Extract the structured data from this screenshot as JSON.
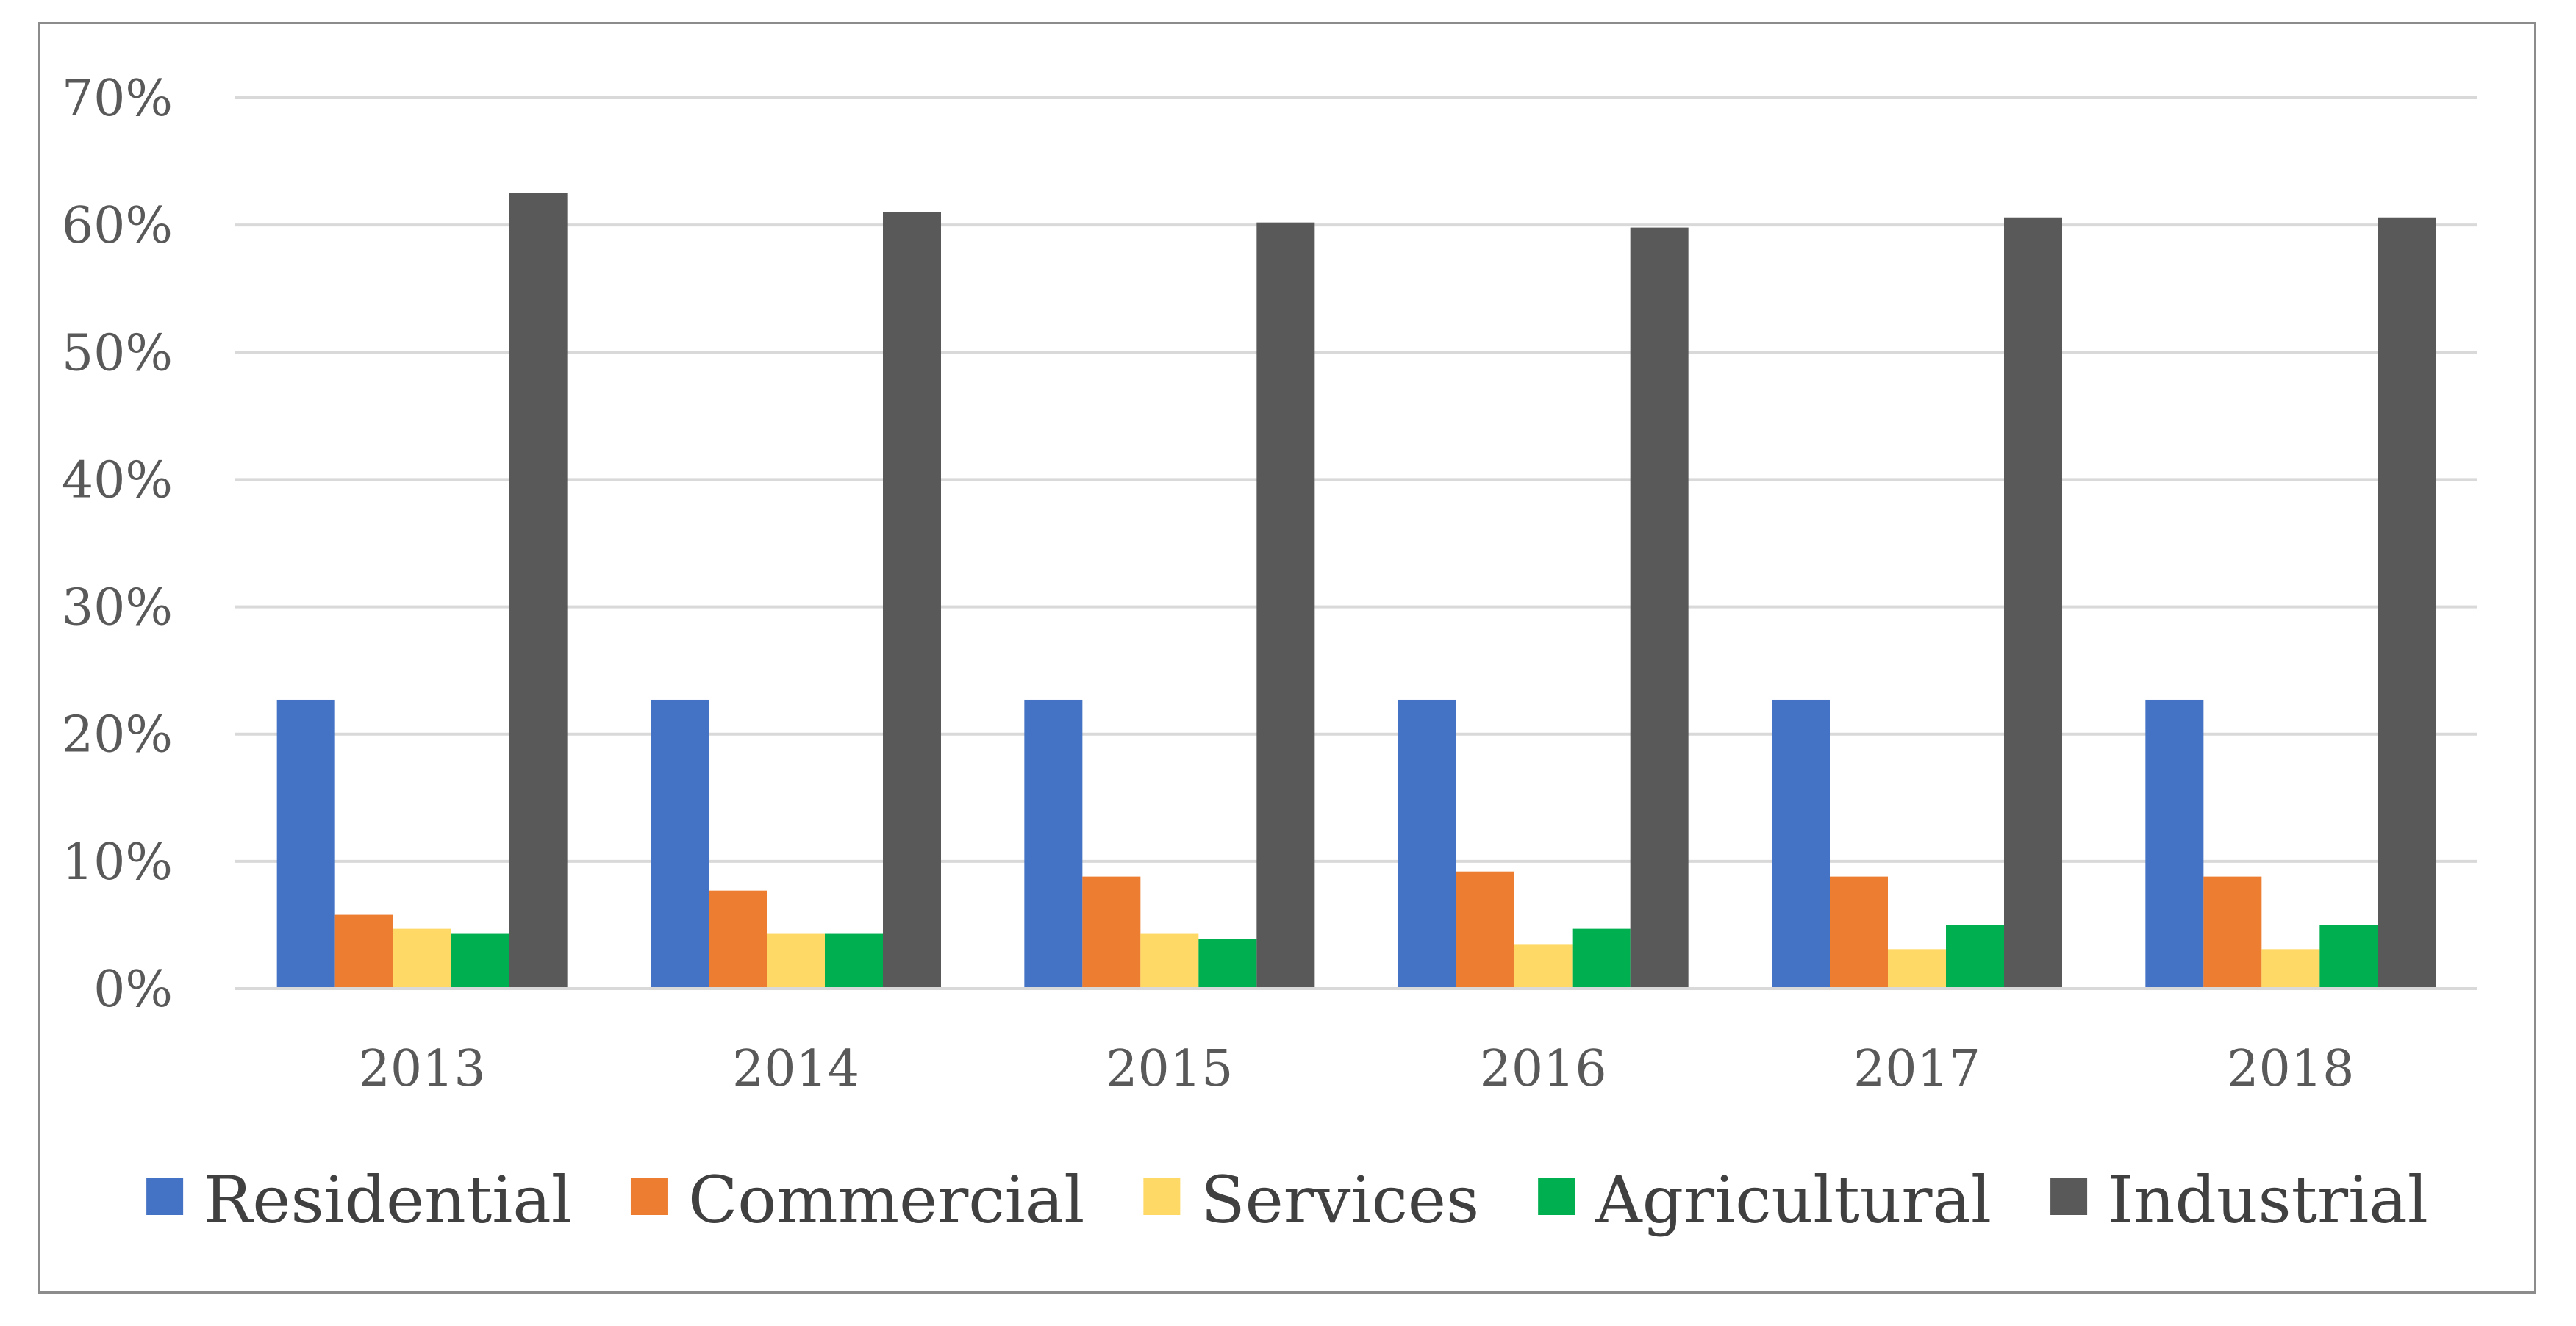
{
  "chart_data": {
    "type": "bar",
    "title": "",
    "xlabel": "",
    "ylabel": "",
    "categories": [
      "2013",
      "2014",
      "2015",
      "2016",
      "2017",
      "2018"
    ],
    "ylim": [
      0,
      70
    ],
    "yticks": [
      "0%",
      "10%",
      "20%",
      "30%",
      "40%",
      "50%",
      "60%",
      "70%"
    ],
    "grid": true,
    "legend_position": "bottom",
    "series": [
      {
        "name": "Residential",
        "color": "#4472C4",
        "values": [
          22.7,
          22.7,
          22.7,
          22.7,
          22.7,
          22.7
        ]
      },
      {
        "name": "Commercial",
        "color": "#ED7D31",
        "values": [
          5.8,
          7.7,
          8.8,
          9.2,
          8.8,
          8.8
        ]
      },
      {
        "name": "Services",
        "color": "#FFD966",
        "values": [
          4.7,
          4.3,
          4.3,
          3.5,
          3.1,
          3.1
        ]
      },
      {
        "name": "Agricultural",
        "color": "#00B050",
        "values": [
          4.3,
          4.3,
          3.9,
          4.7,
          5.0,
          5.0
        ]
      },
      {
        "name": "Industrial",
        "color": "#595959",
        "values": [
          62.5,
          61.0,
          60.2,
          59.8,
          60.6,
          60.6
        ]
      }
    ]
  }
}
